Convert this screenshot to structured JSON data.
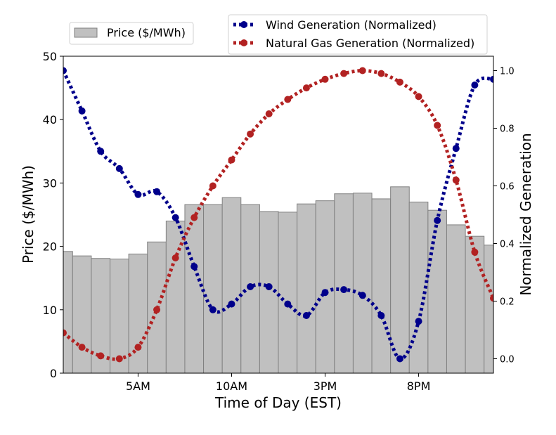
{
  "chart_data": {
    "type": "bar+line",
    "xlabel": "Time of Day (EST)",
    "ylabel": "Price ($/MWh)",
    "y2label": "Normalized Generation",
    "x_ticks": [
      {
        "x": 5,
        "label": "5AM"
      },
      {
        "x": 10,
        "label": "10AM"
      },
      {
        "x": 15,
        "label": "3PM"
      },
      {
        "x": 20,
        "label": "8PM"
      }
    ],
    "xlim": [
      1,
      24
    ],
    "ylim": [
      0,
      50
    ],
    "y_ticks": [
      "0",
      "10",
      "20",
      "30",
      "40",
      "50"
    ],
    "y2lim": [
      -0.05,
      1.05
    ],
    "y2_ticks": [
      "0.0",
      "0.2",
      "0.4",
      "0.6",
      "0.8",
      "1.0"
    ],
    "bar": {
      "name": "Price ($/MWh)",
      "color": "#c0c0c0",
      "edge_color": "#808080",
      "hours": [
        1,
        2,
        3,
        4,
        5,
        6,
        7,
        8,
        9,
        10,
        11,
        12,
        13,
        14,
        15,
        16,
        17,
        18,
        19,
        20,
        21,
        22,
        23,
        24
      ],
      "values": [
        19.2,
        18.5,
        18.1,
        18.0,
        18.8,
        20.7,
        24.0,
        26.6,
        26.6,
        27.7,
        26.6,
        25.5,
        25.4,
        26.7,
        27.2,
        28.3,
        28.4,
        27.5,
        29.4,
        27.0,
        25.7,
        23.4,
        21.6,
        20.2
      ]
    },
    "series": [
      {
        "name": "Wind Generation (Normalized)",
        "color": "#00008b",
        "x": [
          1,
          2,
          3,
          4,
          5,
          6,
          7,
          8,
          9,
          10,
          11,
          12,
          13,
          14,
          15,
          16,
          17,
          18,
          19,
          20,
          21,
          22,
          23,
          24
        ],
        "values": [
          1.0,
          0.86,
          0.72,
          0.66,
          0.57,
          0.58,
          0.49,
          0.32,
          0.17,
          0.19,
          0.25,
          0.25,
          0.19,
          0.15,
          0.23,
          0.24,
          0.22,
          0.15,
          0.0,
          0.13,
          0.48,
          0.73,
          0.95,
          0.97
        ]
      },
      {
        "name": "Natural Gas Generation (Normalized)",
        "color": "#b22222",
        "x": [
          1,
          2,
          3,
          4,
          5,
          6,
          7,
          8,
          9,
          10,
          11,
          12,
          13,
          14,
          15,
          16,
          17,
          18,
          19,
          20,
          21,
          22,
          23,
          24
        ],
        "values": [
          0.09,
          0.04,
          0.01,
          0.0,
          0.04,
          0.17,
          0.35,
          0.49,
          0.6,
          0.69,
          0.78,
          0.85,
          0.9,
          0.94,
          0.97,
          0.99,
          1.0,
          0.99,
          0.96,
          0.91,
          0.81,
          0.62,
          0.37,
          0.21
        ]
      }
    ],
    "legend": {
      "left": [
        "Price ($/MWh)"
      ],
      "right": [
        "Wind Generation (Normalized)",
        "Natural Gas Generation (Normalized)"
      ]
    }
  }
}
